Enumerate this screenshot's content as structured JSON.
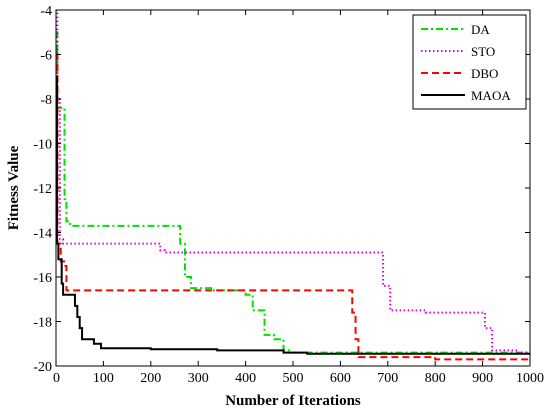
{
  "chart_data": {
    "type": "line",
    "title": "",
    "xlabel": "Number of Iterations",
    "ylabel": "Fitness Value",
    "xlim": [
      0,
      1000
    ],
    "ylim": [
      -20,
      -4
    ],
    "xticks": [
      "0",
      "100",
      "200",
      "300",
      "400",
      "500",
      "600",
      "700",
      "800",
      "900",
      "1000"
    ],
    "yticks": [
      "-4",
      "-6",
      "-8",
      "-10",
      "-12",
      "-14",
      "-16",
      "-18",
      "-20"
    ],
    "grid": false,
    "legend_position": "top-right",
    "series": [
      {
        "name": "DA",
        "color": "#00e000",
        "dash": "dash-dot",
        "points": [
          [
            0,
            -5.0
          ],
          [
            3,
            -5.0
          ],
          [
            3,
            -8.4
          ],
          [
            18,
            -8.4
          ],
          [
            18,
            -12.5
          ],
          [
            22,
            -12.5
          ],
          [
            22,
            -13.5
          ],
          [
            30,
            -13.5
          ],
          [
            30,
            -13.7
          ],
          [
            262,
            -13.7
          ],
          [
            262,
            -14.5
          ],
          [
            272,
            -14.5
          ],
          [
            272,
            -16.0
          ],
          [
            285,
            -16.0
          ],
          [
            285,
            -16.5
          ],
          [
            330,
            -16.5
          ],
          [
            330,
            -16.6
          ],
          [
            400,
            -16.6
          ],
          [
            400,
            -16.8
          ],
          [
            415,
            -16.8
          ],
          [
            415,
            -17.5
          ],
          [
            440,
            -17.5
          ],
          [
            440,
            -18.6
          ],
          [
            460,
            -18.6
          ],
          [
            460,
            -18.8
          ],
          [
            480,
            -18.8
          ],
          [
            480,
            -19.3
          ],
          [
            495,
            -19.3
          ],
          [
            495,
            -19.4
          ],
          [
            1000,
            -19.4
          ]
        ]
      },
      {
        "name": "STO",
        "color": "#dd00dd",
        "dash": "dotted",
        "points": [
          [
            0,
            -4.0
          ],
          [
            3,
            -4.0
          ],
          [
            3,
            -8.0
          ],
          [
            8,
            -8.0
          ],
          [
            8,
            -14.3
          ],
          [
            15,
            -14.3
          ],
          [
            15,
            -14.5
          ],
          [
            220,
            -14.5
          ],
          [
            220,
            -14.8
          ],
          [
            230,
            -14.8
          ],
          [
            230,
            -14.9
          ],
          [
            690,
            -14.9
          ],
          [
            690,
            -16.4
          ],
          [
            705,
            -16.4
          ],
          [
            705,
            -17.5
          ],
          [
            780,
            -17.5
          ],
          [
            780,
            -17.6
          ],
          [
            905,
            -17.6
          ],
          [
            905,
            -18.3
          ],
          [
            920,
            -18.3
          ],
          [
            920,
            -19.3
          ],
          [
            975,
            -19.3
          ],
          [
            975,
            -19.4
          ],
          [
            1000,
            -19.4
          ]
        ]
      },
      {
        "name": "DBO",
        "color": "#ff0000",
        "dash": "dashed",
        "points": [
          [
            0,
            -6.0
          ],
          [
            3,
            -6.0
          ],
          [
            3,
            -14.5
          ],
          [
            10,
            -14.5
          ],
          [
            10,
            -15.3
          ],
          [
            20,
            -15.3
          ],
          [
            20,
            -15.5
          ],
          [
            22,
            -15.5
          ],
          [
            22,
            -16.6
          ],
          [
            625,
            -16.6
          ],
          [
            625,
            -17.6
          ],
          [
            632,
            -17.6
          ],
          [
            632,
            -18.8
          ],
          [
            638,
            -18.8
          ],
          [
            638,
            -19.6
          ],
          [
            800,
            -19.6
          ],
          [
            800,
            -19.7
          ],
          [
            1000,
            -19.7
          ]
        ]
      },
      {
        "name": "MAOA",
        "color": "#000000",
        "dash": "solid",
        "points": [
          [
            0,
            -7.0
          ],
          [
            2,
            -7.0
          ],
          [
            2,
            -14.5
          ],
          [
            5,
            -14.5
          ],
          [
            5,
            -15.2
          ],
          [
            12,
            -15.2
          ],
          [
            12,
            -16.3
          ],
          [
            15,
            -16.3
          ],
          [
            15,
            -16.8
          ],
          [
            40,
            -16.8
          ],
          [
            40,
            -17.3
          ],
          [
            45,
            -17.3
          ],
          [
            45,
            -17.8
          ],
          [
            50,
            -17.8
          ],
          [
            50,
            -18.3
          ],
          [
            55,
            -18.3
          ],
          [
            55,
            -18.8
          ],
          [
            80,
            -18.8
          ],
          [
            80,
            -19.0
          ],
          [
            95,
            -19.0
          ],
          [
            95,
            -19.2
          ],
          [
            200,
            -19.2
          ],
          [
            200,
            -19.25
          ],
          [
            340,
            -19.25
          ],
          [
            340,
            -19.3
          ],
          [
            480,
            -19.3
          ],
          [
            480,
            -19.4
          ],
          [
            530,
            -19.4
          ],
          [
            530,
            -19.45
          ],
          [
            1000,
            -19.45
          ]
        ]
      }
    ]
  }
}
